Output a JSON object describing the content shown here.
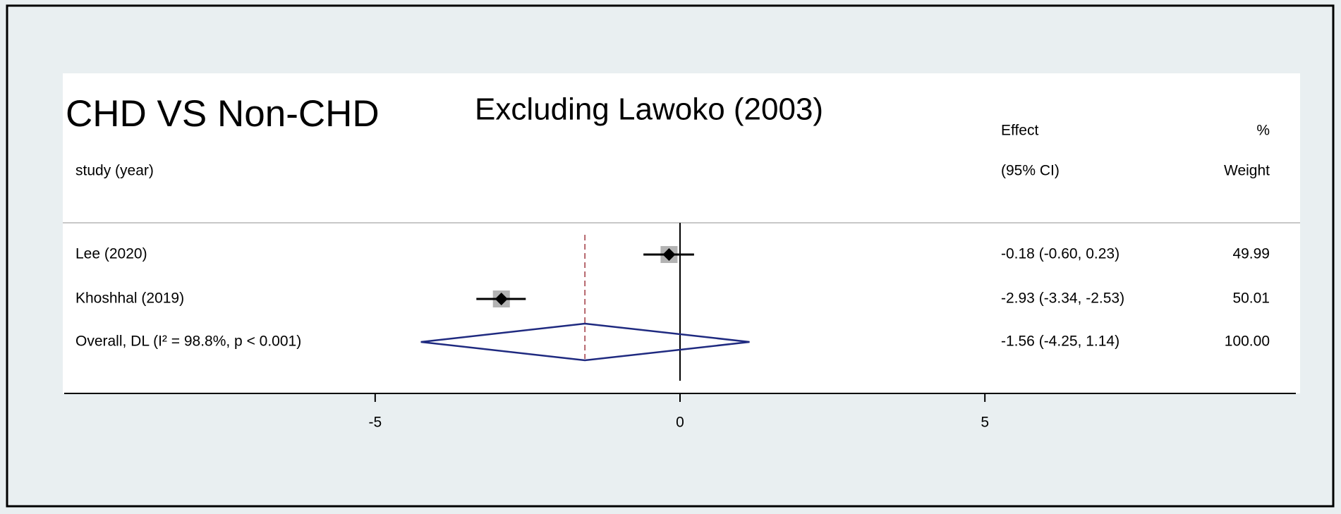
{
  "chart_data": {
    "type": "forest",
    "title": "CHD VS Non-CHD",
    "subtitle": "Excluding Lawoko (2003)",
    "study_header": "study (year)",
    "effect_header": [
      "Effect",
      "(95% CI)"
    ],
    "weight_header": [
      "%",
      "Weight"
    ],
    "categories": [
      "Lee (2020)",
      "Khoshhal (2019)",
      "Overall, DL (I² = 98.8%, p < 0.001)"
    ],
    "values": [
      -0.18,
      -2.93,
      -1.56
    ],
    "lower": [
      -0.6,
      -3.34,
      -4.25
    ],
    "upper": [
      0.23,
      -2.53,
      1.14
    ],
    "value_labels": [
      "-0.18 (-0.60, 0.23)",
      "-2.93 (-3.34, -2.53)",
      "-1.56 (-4.25, 1.14)"
    ],
    "weights": [
      49.99,
      50.01,
      100
    ],
    "weight_labels": [
      "49.99",
      "50.01",
      "100.00"
    ],
    "overall_index": 2,
    "null_value": 0,
    "xlim": [
      -10.1,
      10.1
    ],
    "xticks": [
      -5,
      0,
      5
    ],
    "colors": {
      "box": "#b3b3b3",
      "diamond": "#1f2a80",
      "overall_line": "#b5646a"
    }
  }
}
